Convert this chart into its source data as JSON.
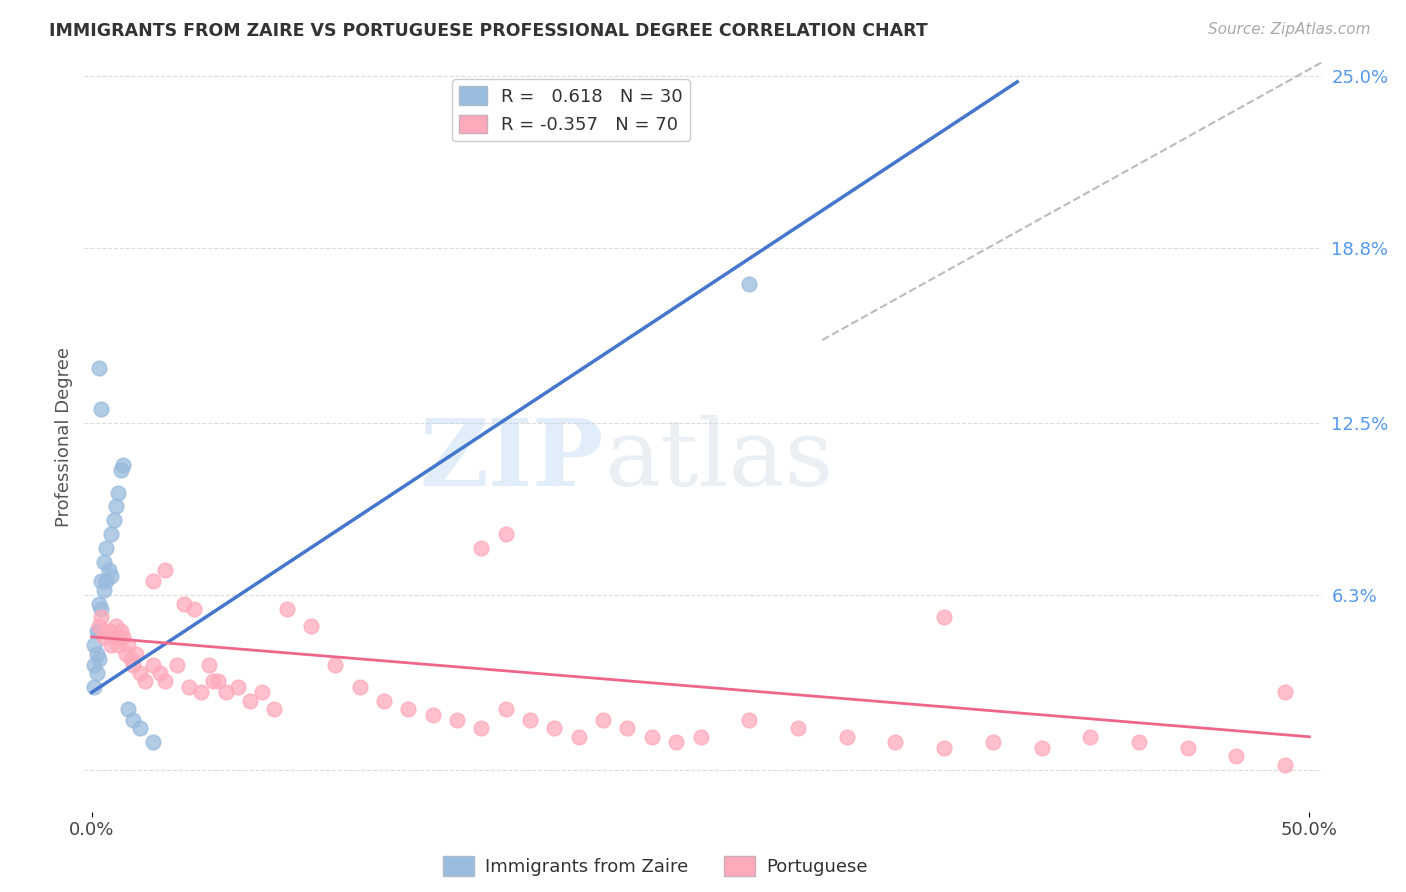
{
  "title": "IMMIGRANTS FROM ZAIRE VS PORTUGUESE PROFESSIONAL DEGREE CORRELATION CHART",
  "source": "Source: ZipAtlas.com",
  "ylabel": "Professional Degree",
  "xlim_min": -0.003,
  "xlim_max": 0.505,
  "ylim_min": -0.015,
  "ylim_max": 0.255,
  "blue_line_x": [
    0.0,
    0.38
  ],
  "blue_line_y": [
    0.028,
    0.248
  ],
  "pink_line_x": [
    0.0,
    0.5
  ],
  "pink_line_y": [
    0.048,
    0.012
  ],
  "dash_line_x": [
    0.3,
    0.505
  ],
  "dash_line_y": [
    0.155,
    0.255
  ],
  "blue_color": "#99BBDD",
  "pink_color": "#FFAABB",
  "blue_line_color": "#4477CC",
  "pink_line_color": "#EE6688",
  "dash_color": "#BBBBBB",
  "blue_scatter_x": [
    0.001,
    0.001,
    0.001,
    0.002,
    0.002,
    0.002,
    0.003,
    0.003,
    0.003,
    0.004,
    0.004,
    0.005,
    0.005,
    0.006,
    0.006,
    0.007,
    0.008,
    0.008,
    0.009,
    0.01,
    0.011,
    0.012,
    0.013,
    0.015,
    0.017,
    0.02,
    0.025,
    0.003,
    0.004,
    0.27
  ],
  "blue_scatter_y": [
    0.045,
    0.038,
    0.03,
    0.05,
    0.042,
    0.035,
    0.06,
    0.05,
    0.04,
    0.068,
    0.058,
    0.075,
    0.065,
    0.08,
    0.068,
    0.072,
    0.085,
    0.07,
    0.09,
    0.095,
    0.1,
    0.108,
    0.11,
    0.022,
    0.018,
    0.015,
    0.01,
    0.145,
    0.13,
    0.175
  ],
  "pink_scatter_x": [
    0.003,
    0.004,
    0.005,
    0.006,
    0.007,
    0.008,
    0.009,
    0.01,
    0.011,
    0.012,
    0.013,
    0.014,
    0.015,
    0.016,
    0.017,
    0.018,
    0.02,
    0.022,
    0.025,
    0.028,
    0.03,
    0.035,
    0.04,
    0.045,
    0.05,
    0.055,
    0.06,
    0.065,
    0.07,
    0.075,
    0.08,
    0.09,
    0.1,
    0.11,
    0.12,
    0.13,
    0.14,
    0.15,
    0.16,
    0.17,
    0.18,
    0.19,
    0.2,
    0.21,
    0.22,
    0.23,
    0.24,
    0.25,
    0.27,
    0.29,
    0.31,
    0.33,
    0.35,
    0.37,
    0.39,
    0.41,
    0.43,
    0.45,
    0.47,
    0.49,
    0.025,
    0.03,
    0.038,
    0.042,
    0.048,
    0.052,
    0.16,
    0.17,
    0.35,
    0.49
  ],
  "pink_scatter_y": [
    0.052,
    0.055,
    0.048,
    0.05,
    0.05,
    0.045,
    0.048,
    0.052,
    0.045,
    0.05,
    0.048,
    0.042,
    0.045,
    0.04,
    0.038,
    0.042,
    0.035,
    0.032,
    0.038,
    0.035,
    0.032,
    0.038,
    0.03,
    0.028,
    0.032,
    0.028,
    0.03,
    0.025,
    0.028,
    0.022,
    0.058,
    0.052,
    0.038,
    0.03,
    0.025,
    0.022,
    0.02,
    0.018,
    0.015,
    0.022,
    0.018,
    0.015,
    0.012,
    0.018,
    0.015,
    0.012,
    0.01,
    0.012,
    0.018,
    0.015,
    0.012,
    0.01,
    0.008,
    0.01,
    0.008,
    0.012,
    0.01,
    0.008,
    0.005,
    0.002,
    0.068,
    0.072,
    0.06,
    0.058,
    0.038,
    0.032,
    0.08,
    0.085,
    0.055,
    0.028
  ],
  "watermark_zip": "ZIP",
  "watermark_atlas": "atlas",
  "background_color": "#FFFFFF",
  "grid_color": "#DDDDDD",
  "ytick_values": [
    0.0,
    0.063,
    0.125,
    0.188,
    0.25
  ],
  "ytick_labels": [
    "",
    "6.3%",
    "12.5%",
    "18.8%",
    "25.0%"
  ],
  "xtick_values": [
    0.0,
    0.5
  ],
  "xtick_labels": [
    "0.0%",
    "50.0%"
  ],
  "legend_blue_label": "R =   0.618   N = 30",
  "legend_pink_label": "R = -0.357   N = 70",
  "bottom_label1": "Immigrants from Zaire",
  "bottom_label2": "Portuguese"
}
